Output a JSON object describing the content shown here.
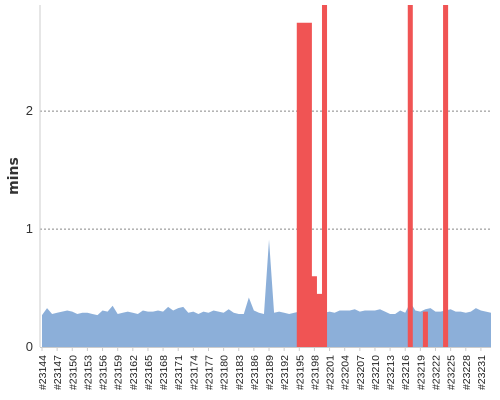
{
  "chart_data": {
    "type": "area",
    "xlabel": "",
    "ylabel": "mins",
    "ylim": [
      0,
      2.9
    ],
    "yticks": [
      0,
      1,
      2
    ],
    "grid": "horizontal-dotted",
    "legend": "none",
    "x_categories": [
      "#23144",
      "#23145",
      "#23146",
      "#23147",
      "#23148",
      "#23149",
      "#23150",
      "#23151",
      "#23152",
      "#23153",
      "#23154",
      "#23155",
      "#23156",
      "#23157",
      "#23158",
      "#23159",
      "#23160",
      "#23161",
      "#23162",
      "#23163",
      "#23164",
      "#23165",
      "#23166",
      "#23167",
      "#23168",
      "#23169",
      "#23170",
      "#23171",
      "#23172",
      "#23173",
      "#23174",
      "#23175",
      "#23176",
      "#23177",
      "#23178",
      "#23179",
      "#23180",
      "#23181",
      "#23182",
      "#23183",
      "#23184",
      "#23185",
      "#23186",
      "#23187",
      "#23188",
      "#23189",
      "#23190",
      "#23191",
      "#23192",
      "#23193",
      "#23194",
      "#23195",
      "#23196",
      "#23197",
      "#23198",
      "#23199",
      "#23200",
      "#23201",
      "#23202",
      "#23203",
      "#23204",
      "#23205",
      "#23206",
      "#23207",
      "#23208",
      "#23209",
      "#23210",
      "#23211",
      "#23212",
      "#23213",
      "#23214",
      "#23215",
      "#23216",
      "#23217",
      "#23218",
      "#23219",
      "#23220",
      "#23221",
      "#23222",
      "#23223",
      "#23224",
      "#23225",
      "#23226",
      "#23227",
      "#23228",
      "#23229",
      "#23230",
      "#23231",
      "#23232",
      "#23233"
    ],
    "x_tick_labels": [
      "#23144",
      "#23147",
      "#23150",
      "#23153",
      "#23156",
      "#23159",
      "#23162",
      "#23165",
      "#23168",
      "#23171",
      "#23174",
      "#23177",
      "#23180",
      "#23183",
      "#23186",
      "#23189",
      "#23192",
      "#23195",
      "#23198",
      "#23201",
      "#23204",
      "#23207",
      "#23210",
      "#23213",
      "#23216",
      "#23219",
      "#23222",
      "#23225",
      "#23228",
      "#23231"
    ],
    "series": [
      {
        "color": "#8cafd9",
        "values": [
          0.27,
          0.33,
          0.28,
          0.29,
          0.3,
          0.31,
          0.3,
          0.28,
          0.29,
          0.29,
          0.28,
          0.27,
          0.31,
          0.3,
          0.35,
          0.28,
          0.29,
          0.3,
          0.29,
          0.28,
          0.31,
          0.3,
          0.3,
          0.31,
          0.3,
          0.34,
          0.31,
          0.33,
          0.34,
          0.29,
          0.3,
          0.28,
          0.3,
          0.29,
          0.31,
          0.3,
          0.29,
          0.32,
          0.29,
          0.28,
          0.28,
          0.42,
          0.31,
          0.29,
          0.28,
          0.91,
          0.29,
          0.3,
          0.29,
          0.28,
          0.29,
          0.3,
          0.29,
          0.3,
          0.28,
          0.29,
          0.29,
          0.3,
          0.29,
          0.31,
          0.31,
          0.31,
          0.32,
          0.3,
          0.31,
          0.31,
          0.31,
          0.32,
          0.3,
          0.28,
          0.28,
          0.31,
          0.29,
          0.38,
          0.31,
          0.3,
          0.32,
          0.33,
          0.3,
          0.3,
          0.31,
          0.32,
          0.3,
          0.3,
          0.29,
          0.3,
          0.33,
          0.31,
          0.3,
          0.29
        ]
      },
      {
        "color": "#f05454",
        "values": [
          0,
          0,
          0,
          0,
          0,
          0,
          0,
          0,
          0,
          0,
          0,
          0,
          0,
          0,
          0,
          0,
          0,
          0,
          0,
          0,
          0,
          0,
          0,
          0,
          0,
          0,
          0,
          0,
          0,
          0,
          0,
          0,
          0,
          0,
          0,
          0,
          0,
          0,
          0,
          0,
          0,
          0,
          0,
          0,
          0,
          0,
          0,
          0,
          0,
          0,
          0,
          2.75,
          2.75,
          2.75,
          0.6,
          0.45,
          2.9,
          0,
          0,
          0,
          0,
          0,
          0,
          0,
          0,
          0,
          0,
          0,
          0,
          0,
          0,
          0,
          0,
          2.9,
          0,
          0,
          0.3,
          0,
          0,
          0,
          2.9,
          0,
          0,
          0,
          0,
          0,
          0,
          0,
          0,
          0
        ]
      }
    ]
  }
}
